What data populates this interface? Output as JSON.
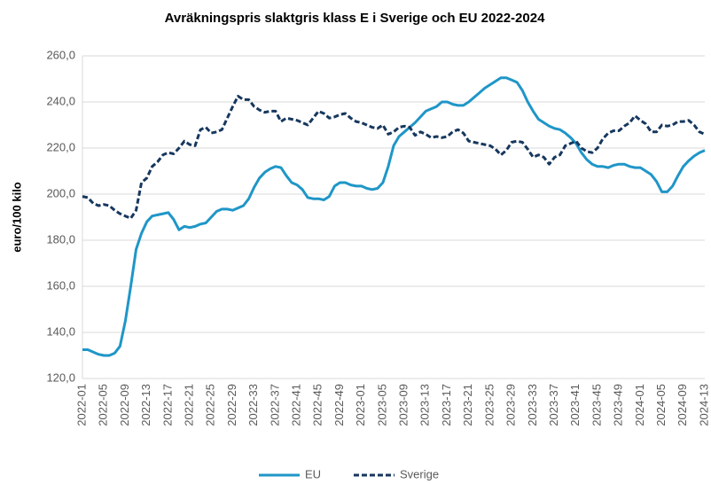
{
  "chart_data": {
    "type": "line",
    "title": "Avräkningspris slaktgris klass E i Sverige och EU 2022-2024",
    "y_label": "euro/100 kilo",
    "categories": [
      "2022-01",
      null,
      null,
      null,
      "2022-05",
      null,
      null,
      null,
      "2022-09",
      null,
      null,
      null,
      "2022-13",
      null,
      null,
      null,
      "2022-17",
      null,
      null,
      null,
      "2022-21",
      null,
      null,
      null,
      "2022-25",
      null,
      null,
      null,
      "2022-29",
      null,
      null,
      null,
      "2022-33",
      null,
      null,
      null,
      "2022-37",
      null,
      null,
      null,
      "2022-41",
      null,
      null,
      null,
      "2022-45",
      null,
      null,
      null,
      "2022-49",
      null,
      null,
      null,
      "2023-01",
      null,
      null,
      null,
      "2023-05",
      null,
      null,
      null,
      "2023-09",
      null,
      null,
      null,
      "2023-13",
      null,
      null,
      null,
      "2023-17",
      null,
      null,
      null,
      "2023-21",
      null,
      null,
      null,
      "2023-25",
      null,
      null,
      null,
      "2023-29",
      null,
      null,
      null,
      "2023-33",
      null,
      null,
      null,
      "2023-37",
      null,
      null,
      null,
      "2023-41",
      null,
      null,
      null,
      "2023-45",
      null,
      null,
      null,
      "2023-49",
      null,
      null,
      null,
      "2024-01",
      null,
      null,
      null,
      "2024-05",
      null,
      null,
      null,
      "2024-09",
      null,
      null,
      null,
      "2024-13"
    ],
    "series": [
      {
        "name": "EU",
        "color": "#1f96c8",
        "dash": false,
        "values": [
          132.5,
          132.5,
          131.5,
          130.5,
          130,
          130,
          131,
          134,
          145,
          160,
          176,
          183,
          188,
          190.5,
          191,
          191.5,
          192,
          189,
          184.5,
          186,
          185.5,
          186,
          187,
          187.5,
          190,
          192.5,
          193.5,
          193.5,
          193,
          194,
          195,
          198,
          203,
          207,
          209.5,
          211,
          212,
          211.5,
          208,
          205,
          204,
          202,
          198.5,
          198,
          198,
          197.5,
          199,
          203.5,
          205,
          205,
          204,
          203.5,
          203.5,
          202.5,
          202,
          202.5,
          205,
          212,
          221,
          225,
          227,
          229,
          231,
          233.5,
          236,
          237,
          238,
          240,
          240,
          239,
          238.5,
          238.5,
          240,
          242,
          244,
          246,
          247.5,
          249,
          250.5,
          250.5,
          249.5,
          248.5,
          245,
          240,
          236,
          232.5,
          231,
          229.5,
          228.5,
          228,
          226.5,
          224.5,
          222,
          218,
          215,
          213,
          212,
          212,
          211.5,
          212.5,
          213,
          213,
          212,
          211.5,
          211.5,
          210,
          208.5,
          205.5,
          201,
          201,
          203.5,
          208,
          212,
          214.5,
          216.5,
          218,
          219
        ]
      },
      {
        "name": "Sverige",
        "color": "#17375e",
        "dash": true,
        "values": [
          199,
          198.5,
          196,
          195,
          195.5,
          195,
          193,
          191.5,
          190.5,
          189.5,
          193,
          205,
          207,
          212,
          214,
          217,
          218,
          217.5,
          220,
          223,
          221.5,
          221,
          228,
          229,
          226.5,
          227,
          228,
          233,
          238,
          242.5,
          241,
          241,
          238,
          236.5,
          235.5,
          236,
          236,
          231.5,
          233,
          232.5,
          232,
          231,
          230,
          233,
          236,
          235,
          233,
          233.5,
          234.5,
          235,
          233,
          231.5,
          231,
          230,
          229,
          228.5,
          230,
          226,
          227,
          229,
          229.5,
          229,
          225.5,
          227,
          226,
          224.5,
          225,
          224.5,
          225,
          227,
          228,
          226.5,
          223,
          222.5,
          222,
          221.5,
          221,
          219.5,
          217,
          219,
          222.5,
          223,
          222.5,
          219.5,
          216,
          217,
          216,
          213,
          216,
          217,
          221,
          222,
          223,
          220,
          218.5,
          218,
          220,
          224,
          226.5,
          227.5,
          227.5,
          229.5,
          231,
          234,
          232,
          230.5,
          227,
          227,
          230,
          229.5,
          230,
          231.5,
          231.5,
          232,
          230,
          227,
          226
        ]
      }
    ],
    "ylim": [
      120,
      260
    ],
    "yticks": [
      {
        "value": 120,
        "label": "120,0"
      },
      {
        "value": 140,
        "label": "140,0"
      },
      {
        "value": 160,
        "label": "160,0"
      },
      {
        "value": 180,
        "label": "180,0"
      },
      {
        "value": 200,
        "label": "200,0"
      },
      {
        "value": 220,
        "label": "220,0"
      },
      {
        "value": 240,
        "label": "240,0"
      },
      {
        "value": 260,
        "label": "260,0"
      }
    ],
    "grid": true,
    "legend": "bottom"
  }
}
